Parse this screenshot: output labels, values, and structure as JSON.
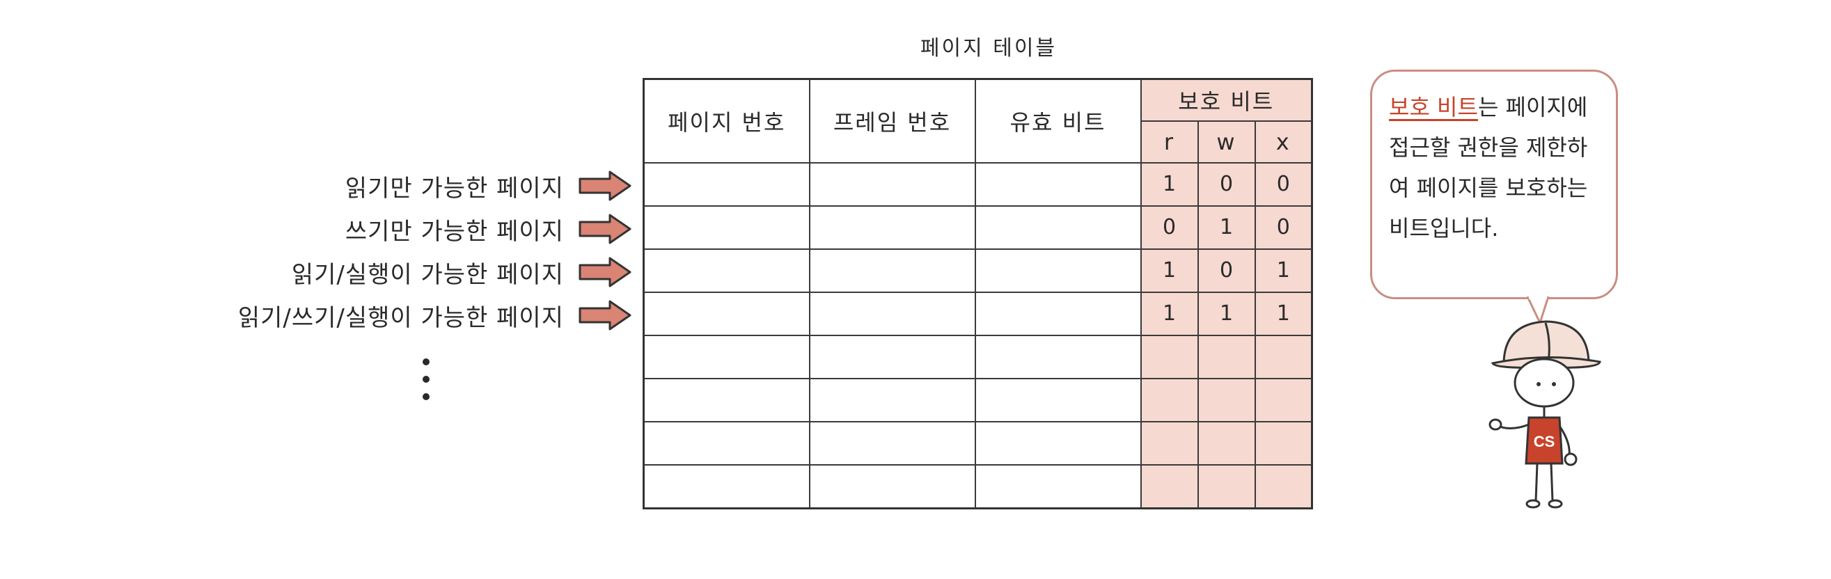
{
  "table_title": "페이지 테이블",
  "columns": {
    "page_number": "페이지 번호",
    "frame_number": "프레임 번호",
    "valid_bit": "유효 비트",
    "protection_bit": "보호 비트",
    "bits": [
      "r",
      "w",
      "x"
    ]
  },
  "rows": [
    {
      "label": "읽기만 가능한 페이지",
      "bits": [
        "1",
        "0",
        "0"
      ]
    },
    {
      "label": "쓰기만 가능한 페이지",
      "bits": [
        "0",
        "1",
        "0"
      ]
    },
    {
      "label": "읽기/실행이 가능한 페이지",
      "bits": [
        "1",
        "0",
        "1"
      ]
    },
    {
      "label": "읽기/쓰기/실행이 가능한 페이지",
      "bits": [
        "1",
        "1",
        "1"
      ]
    },
    {
      "label": "",
      "bits": [
        "",
        "",
        ""
      ]
    },
    {
      "label": "",
      "bits": [
        "",
        "",
        ""
      ]
    },
    {
      "label": "",
      "bits": [
        "",
        "",
        ""
      ]
    },
    {
      "label": "",
      "bits": [
        "",
        "",
        ""
      ]
    }
  ],
  "bubble": {
    "highlight": "보호 비트",
    "text": "는 페이지에 접근할 권한을 제한하여 페이지를 보호하는 비트입니다."
  },
  "character": {
    "shirt_text": "CS"
  },
  "colors": {
    "protection_fill": "#f6d9d1",
    "arrow_fill": "#d98474",
    "highlight": "#c8432b",
    "shirt": "#c8432b",
    "bubble_border": "#c98e82"
  }
}
